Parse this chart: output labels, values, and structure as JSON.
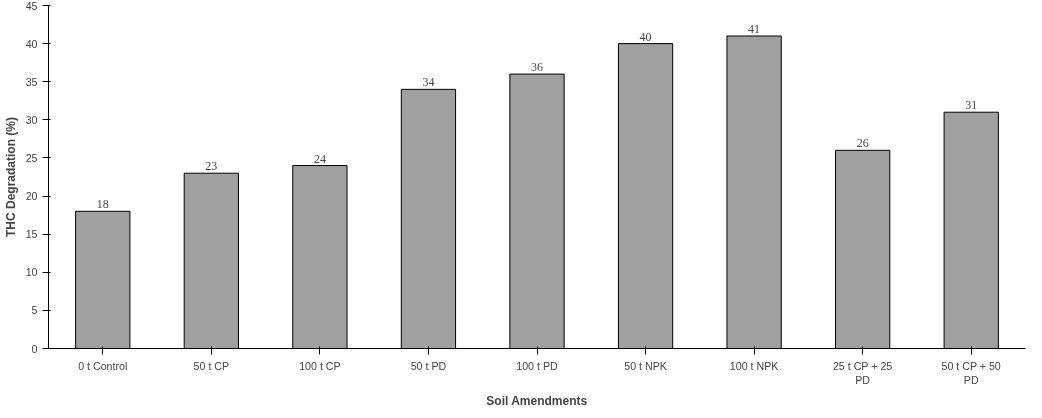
{
  "chart_data": {
    "type": "bar",
    "xlabel": "Soil Amendments",
    "ylabel": "THC Degradation (%)",
    "categories": [
      "0 t Control",
      "50 t CP",
      "100 t CP",
      "50 t PD",
      "100 t PD",
      "50 t NPK",
      "100 t NPK",
      "25 t CP + 25\nPD",
      "50 t CP + 50\nPD"
    ],
    "values": [
      18,
      23,
      24,
      34,
      36,
      40,
      41,
      26,
      31
    ],
    "color": "#a0a0a0",
    "ylim": [
      0,
      45
    ],
    "yticks": [
      0,
      5,
      10,
      15,
      20,
      25,
      30,
      35,
      40,
      45
    ],
    "grid": false,
    "data_labels": true
  }
}
